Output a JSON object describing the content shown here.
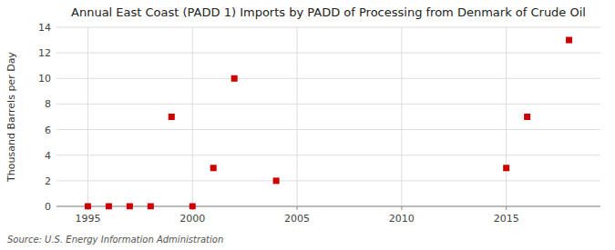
{
  "chart_data": {
    "type": "scatter",
    "title": "Annual East Coast (PADD 1) Imports by PADD of Processing from Denmark of Crude Oil",
    "ylabel": "Thousand Barrels per Day",
    "annotations": [
      "Source: U.S. Energy Information Administration"
    ],
    "x": [
      1995,
      1996,
      1997,
      1998,
      1999,
      2000,
      2001,
      2002,
      2004,
      2015,
      2016,
      2018
    ],
    "values": [
      0,
      0,
      0,
      0,
      7,
      0,
      3,
      10,
      2,
      3,
      7,
      13
    ],
    "xlim": [
      1993.5,
      2019.5
    ],
    "ylim": [
      0,
      14
    ],
    "xticks": [
      1995,
      2000,
      2005,
      2010,
      2015
    ],
    "yticks": [
      0,
      2,
      4,
      6,
      8,
      10,
      12,
      14
    ],
    "color": "#cc0000",
    "marker": "square",
    "grid": true
  }
}
